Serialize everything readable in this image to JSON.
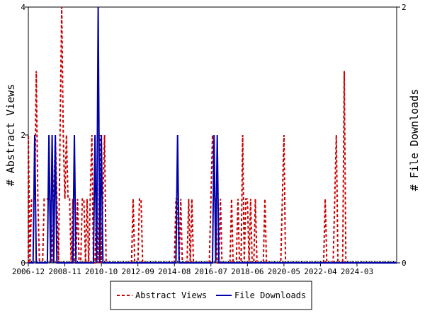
{
  "chart_data": {
    "type": "line",
    "ylabel_left": "# Abstract Views",
    "ylabel_right": "# File Downloads",
    "x_tick_labels": [
      "2006-12",
      "2008-11",
      "2010-10",
      "2012-09",
      "2014-08",
      "2016-07",
      "2018-06",
      "2020-05",
      "2022-04",
      "2024-03"
    ],
    "y_left_ticks": [
      "0",
      "2",
      "4"
    ],
    "y_right_ticks": [
      "0",
      "2"
    ],
    "ylim_left": [
      0,
      4
    ],
    "ylim_right": [
      0,
      2
    ],
    "x_range_months": [
      "2006-12",
      "2026-04"
    ],
    "legend_position": "bottom",
    "series": [
      {
        "name": "Abstract Views",
        "axis": "left",
        "color": "#cc0000",
        "style": "dashed",
        "points": [
          [
            "2006-12",
            2
          ],
          [
            "2007-01",
            0
          ],
          [
            "2007-02",
            1
          ],
          [
            "2007-03",
            1
          ],
          [
            "2007-04",
            1
          ],
          [
            "2007-05",
            3
          ],
          [
            "2007-06",
            1
          ],
          [
            "2007-07",
            0
          ],
          [
            "2007-08",
            0
          ],
          [
            "2007-09",
            0
          ],
          [
            "2007-10",
            1
          ],
          [
            "2007-11",
            1
          ],
          [
            "2007-12",
            1
          ],
          [
            "2008-01",
            1
          ],
          [
            "2008-02",
            1
          ],
          [
            "2008-03",
            0
          ],
          [
            "2008-04",
            1
          ],
          [
            "2008-05",
            2
          ],
          [
            "2008-06",
            1
          ],
          [
            "2008-07",
            0
          ],
          [
            "2008-08",
            2
          ],
          [
            "2008-09",
            4
          ],
          [
            "2008-10",
            2
          ],
          [
            "2008-11",
            1
          ],
          [
            "2008-12",
            2
          ],
          [
            "2009-01",
            1
          ],
          [
            "2009-02",
            1
          ],
          [
            "2009-03",
            0
          ],
          [
            "2009-04",
            1
          ],
          [
            "2009-05",
            0
          ],
          [
            "2009-06",
            0
          ],
          [
            "2009-07",
            1
          ],
          [
            "2009-08",
            0
          ],
          [
            "2009-09",
            0
          ],
          [
            "2009-10",
            1
          ],
          [
            "2009-11",
            1
          ],
          [
            "2009-12",
            0
          ],
          [
            "2010-01",
            1
          ],
          [
            "2010-02",
            0
          ],
          [
            "2010-03",
            1
          ],
          [
            "2010-04",
            2
          ],
          [
            "2010-05",
            0
          ],
          [
            "2010-06",
            0
          ],
          [
            "2010-07",
            1
          ],
          [
            "2010-08",
            0
          ],
          [
            "2010-09",
            2
          ],
          [
            "2010-10",
            0
          ],
          [
            "2010-11",
            1
          ],
          [
            "2010-12",
            2
          ],
          [
            "2011-01",
            0
          ],
          [
            "2011-02",
            0
          ],
          [
            "2011-03",
            0
          ],
          [
            "2011-04",
            0
          ],
          [
            "2011-05",
            0
          ],
          [
            "2011-06",
            0
          ],
          [
            "2011-07",
            0
          ],
          [
            "2011-08",
            0
          ],
          [
            "2011-09",
            0
          ],
          [
            "2011-10",
            0
          ],
          [
            "2011-11",
            0
          ],
          [
            "2011-12",
            0
          ],
          [
            "2012-01",
            0
          ],
          [
            "2012-02",
            0
          ],
          [
            "2012-03",
            0
          ],
          [
            "2012-04",
            0
          ],
          [
            "2012-05",
            0
          ],
          [
            "2012-06",
            1
          ],
          [
            "2012-07",
            0
          ],
          [
            "2012-08",
            0
          ],
          [
            "2012-09",
            0
          ],
          [
            "2012-10",
            1
          ],
          [
            "2012-11",
            1
          ],
          [
            "2012-12",
            0
          ],
          [
            "2014-06",
            0
          ],
          [
            "2014-07",
            0
          ],
          [
            "2014-08",
            0
          ],
          [
            "2014-09",
            1
          ],
          [
            "2014-10",
            1
          ],
          [
            "2014-11",
            0
          ],
          [
            "2014-12",
            1
          ],
          [
            "2015-01",
            0
          ],
          [
            "2015-02",
            0
          ],
          [
            "2015-03",
            0
          ],
          [
            "2015-04",
            0
          ],
          [
            "2015-05",
            1
          ],
          [
            "2015-06",
            0
          ],
          [
            "2015-07",
            1
          ],
          [
            "2015-08",
            0
          ],
          [
            "2016-05",
            0
          ],
          [
            "2016-06",
            0
          ],
          [
            "2016-07",
            1
          ],
          [
            "2016-08",
            2
          ],
          [
            "2016-09",
            1
          ],
          [
            "2016-10",
            1
          ],
          [
            "2016-11",
            0
          ],
          [
            "2016-12",
            0
          ],
          [
            "2017-01",
            1
          ],
          [
            "2017-02",
            0
          ],
          [
            "2017-03",
            0
          ],
          [
            "2017-04",
            0
          ],
          [
            "2017-05",
            0
          ],
          [
            "2017-06",
            0
          ],
          [
            "2017-07",
            0
          ],
          [
            "2017-08",
            1
          ],
          [
            "2017-09",
            0
          ],
          [
            "2017-10",
            0
          ],
          [
            "2017-11",
            0
          ],
          [
            "2017-12",
            1
          ],
          [
            "2018-01",
            0
          ],
          [
            "2018-02",
            0
          ],
          [
            "2018-03",
            2
          ],
          [
            "2018-04",
            0
          ],
          [
            "2018-05",
            1
          ],
          [
            "2018-06",
            1
          ],
          [
            "2018-07",
            0
          ],
          [
            "2018-08",
            1
          ],
          [
            "2018-09",
            0
          ],
          [
            "2018-10",
            0
          ],
          [
            "2018-11",
            1
          ],
          [
            "2018-12",
            0
          ],
          [
            "2019-01",
            0
          ],
          [
            "2019-02",
            0
          ],
          [
            "2019-03",
            0
          ],
          [
            "2019-04",
            0
          ],
          [
            "2019-05",
            1
          ],
          [
            "2019-06",
            0
          ],
          [
            "2019-07",
            0
          ],
          [
            "2019-08",
            0
          ],
          [
            "2019-09",
            0
          ],
          [
            "2019-10",
            0
          ],
          [
            "2019-11",
            0
          ],
          [
            "2019-12",
            0
          ],
          [
            "2020-01",
            0
          ],
          [
            "2020-02",
            0
          ],
          [
            "2020-03",
            0
          ],
          [
            "2020-04",
            1
          ],
          [
            "2020-05",
            2
          ],
          [
            "2020-06",
            0
          ],
          [
            "2022-06",
            0
          ],
          [
            "2022-07",
            1
          ],
          [
            "2022-08",
            0
          ],
          [
            "2022-09",
            0
          ],
          [
            "2022-10",
            0
          ],
          [
            "2022-11",
            0
          ],
          [
            "2022-12",
            0
          ],
          [
            "2023-01",
            1
          ],
          [
            "2023-02",
            2
          ],
          [
            "2023-03",
            0
          ],
          [
            "2023-04",
            0
          ],
          [
            "2023-05",
            0
          ],
          [
            "2023-06",
            0
          ],
          [
            "2023-07",
            3
          ],
          [
            "2023-08",
            0
          ],
          [
            "2023-09",
            0
          ]
        ]
      },
      {
        "name": "File Downloads",
        "axis": "right",
        "color": "#0000aa",
        "style": "solid",
        "points": [
          [
            "2007-03",
            0
          ],
          [
            "2007-04",
            1
          ],
          [
            "2007-05",
            0
          ],
          [
            "2007-12",
            0
          ],
          [
            "2008-01",
            1
          ],
          [
            "2008-02",
            0
          ],
          [
            "2008-03",
            1
          ],
          [
            "2008-04",
            0
          ],
          [
            "2008-05",
            1
          ],
          [
            "2008-06",
            0
          ],
          [
            "2009-04",
            0
          ],
          [
            "2009-05",
            1
          ],
          [
            "2009-06",
            0
          ],
          [
            "2010-05",
            0
          ],
          [
            "2010-06",
            1
          ],
          [
            "2010-07",
            0
          ],
          [
            "2010-08",
            2
          ],
          [
            "2010-09",
            0
          ],
          [
            "2010-10",
            1
          ],
          [
            "2010-11",
            0
          ],
          [
            "2014-09",
            0
          ],
          [
            "2014-10",
            1
          ],
          [
            "2014-11",
            0
          ],
          [
            "2016-08",
            0
          ],
          [
            "2016-09",
            1
          ],
          [
            "2016-10",
            0
          ],
          [
            "2016-11",
            1
          ],
          [
            "2016-12",
            0
          ]
        ]
      }
    ]
  }
}
